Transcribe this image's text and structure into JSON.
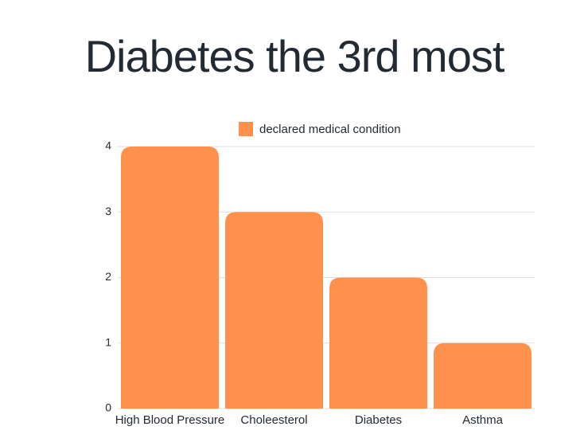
{
  "chart_data": {
    "type": "bar",
    "title": "Diabetes the 3rd most",
    "categories": [
      "High Blood Pressure",
      "Choleesterol",
      "Diabetes",
      "Asthma"
    ],
    "series": [
      {
        "name": "declared medical condition",
        "color": "#ff914d",
        "values": [
          4,
          3,
          2,
          1
        ]
      }
    ],
    "ylim": [
      0,
      4
    ],
    "yticks": [
      0,
      1,
      2,
      3,
      4
    ],
    "grid": true,
    "legend": "top"
  }
}
